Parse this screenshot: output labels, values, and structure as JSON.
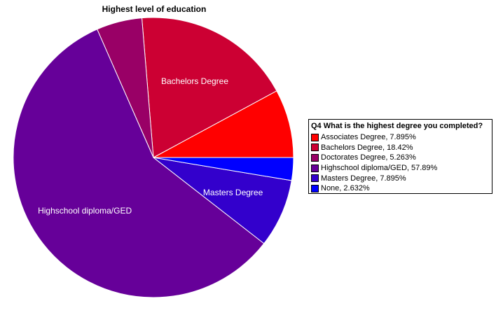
{
  "chart_data": {
    "type": "pie",
    "title": "Highest level of education",
    "legend_title": "Q4 What is the highest degree you completed?",
    "legend_position": "right",
    "slices": [
      {
        "label": "Associates Degree",
        "legend": "Associates Degree, 7.895%",
        "value": 7.895,
        "color": "#ff0000",
        "slice_label": ""
      },
      {
        "label": "Bachelors Degree",
        "legend": "Bachelors Degree, 18.42%",
        "value": 18.42,
        "color": "#cc0033",
        "slice_label": "Bachelors Degree"
      },
      {
        "label": "Doctorates Degree",
        "legend": "Doctorates Degree, 5.263%",
        "value": 5.263,
        "color": "#990066",
        "slice_label": ""
      },
      {
        "label": "Highschool diploma/GED",
        "legend": "Highschool diploma/GED, 57.89%",
        "value": 57.89,
        "color": "#660099",
        "slice_label": "Highschool diploma/GED"
      },
      {
        "label": "Masters Degree",
        "legend": "Masters Degree, 7.895%",
        "value": 7.895,
        "color": "#3300cc",
        "slice_label": "Masters Degree"
      },
      {
        "label": "None",
        "legend": "None, 2.632%",
        "value": 2.632,
        "color": "#0000ff",
        "slice_label": ""
      }
    ]
  }
}
